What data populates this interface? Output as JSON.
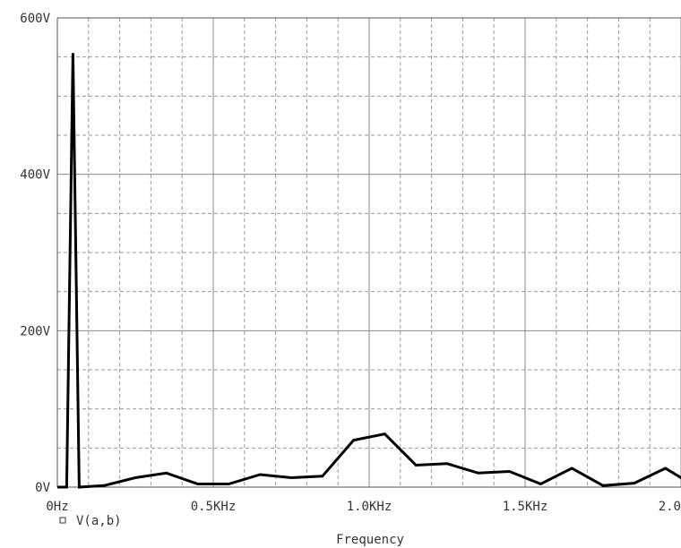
{
  "chart_data": {
    "type": "line",
    "title": "",
    "xlabel": "Frequency",
    "ylabel": "",
    "x_unit": "Hz",
    "xlim": [
      0,
      2000
    ],
    "ylim": [
      0,
      600
    ],
    "x_ticks": [
      {
        "value": 0,
        "label": "0Hz"
      },
      {
        "value": 500,
        "label": "0.5KHz"
      },
      {
        "value": 1000,
        "label": "1.0KHz"
      },
      {
        "value": 1500,
        "label": "1.5KHz"
      },
      {
        "value": 2000,
        "label": "2.0KHz"
      }
    ],
    "y_ticks": [
      {
        "value": 0,
        "label": "0V"
      },
      {
        "value": 200,
        "label": "200V"
      },
      {
        "value": 400,
        "label": "400V"
      },
      {
        "value": 600,
        "label": "600V"
      }
    ],
    "grid": true,
    "legend": {
      "placement": "bottom-left"
    },
    "series": [
      {
        "name": "V(a,b)",
        "color": "#000000",
        "x": [
          0,
          30,
          50,
          70,
          150,
          250,
          350,
          450,
          550,
          650,
          750,
          850,
          950,
          1050,
          1150,
          1250,
          1350,
          1450,
          1550,
          1650,
          1750,
          1850,
          1950,
          2050
        ],
        "y": [
          0,
          0,
          555,
          0,
          2,
          12,
          18,
          4,
          4,
          16,
          12,
          14,
          60,
          68,
          28,
          30,
          18,
          20,
          4,
          24,
          2,
          5,
          24,
          0
        ]
      }
    ]
  }
}
